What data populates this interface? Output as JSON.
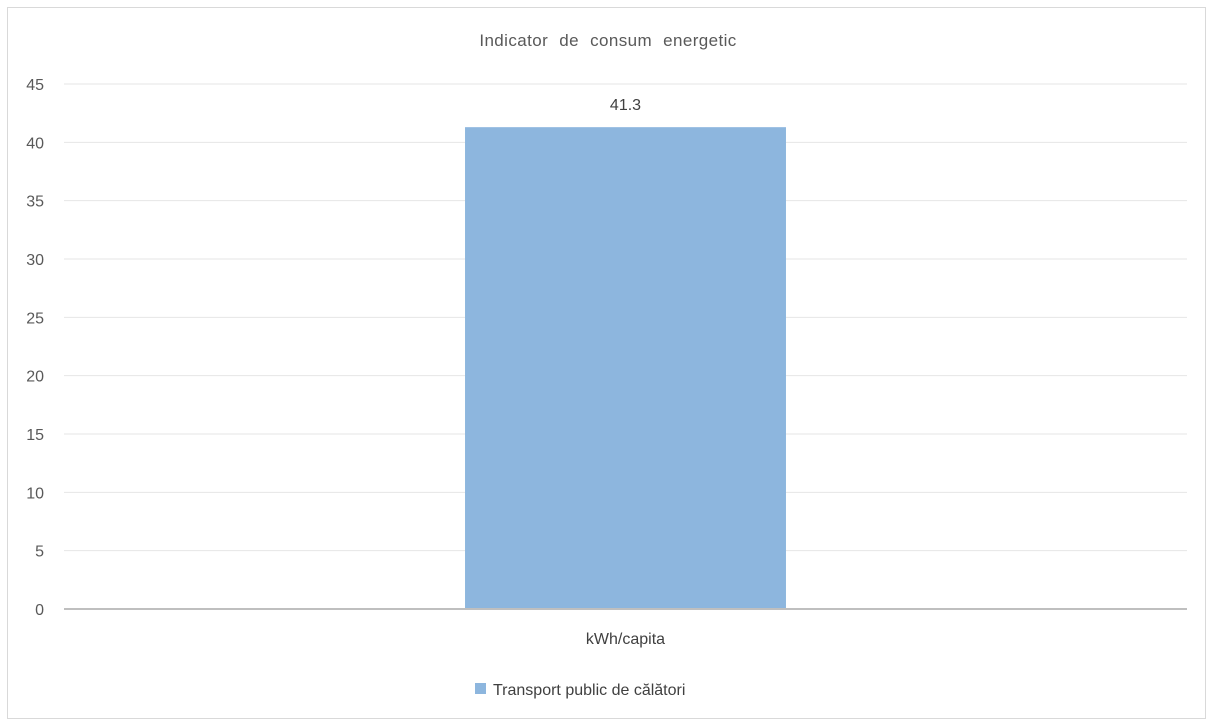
{
  "chart_data": {
    "type": "bar",
    "title": "Indicator de consum energetic",
    "categories": [
      "kWh/capita"
    ],
    "series": [
      {
        "name": "Transport public de călători",
        "values": [
          41.3
        ],
        "color": "#8db6de"
      }
    ],
    "data_labels": [
      "41.3"
    ],
    "ylim": [
      0,
      45
    ],
    "yticks": [
      0,
      5,
      10,
      15,
      20,
      25,
      30,
      35,
      40,
      45
    ],
    "grid": true,
    "legend": "bottom"
  }
}
